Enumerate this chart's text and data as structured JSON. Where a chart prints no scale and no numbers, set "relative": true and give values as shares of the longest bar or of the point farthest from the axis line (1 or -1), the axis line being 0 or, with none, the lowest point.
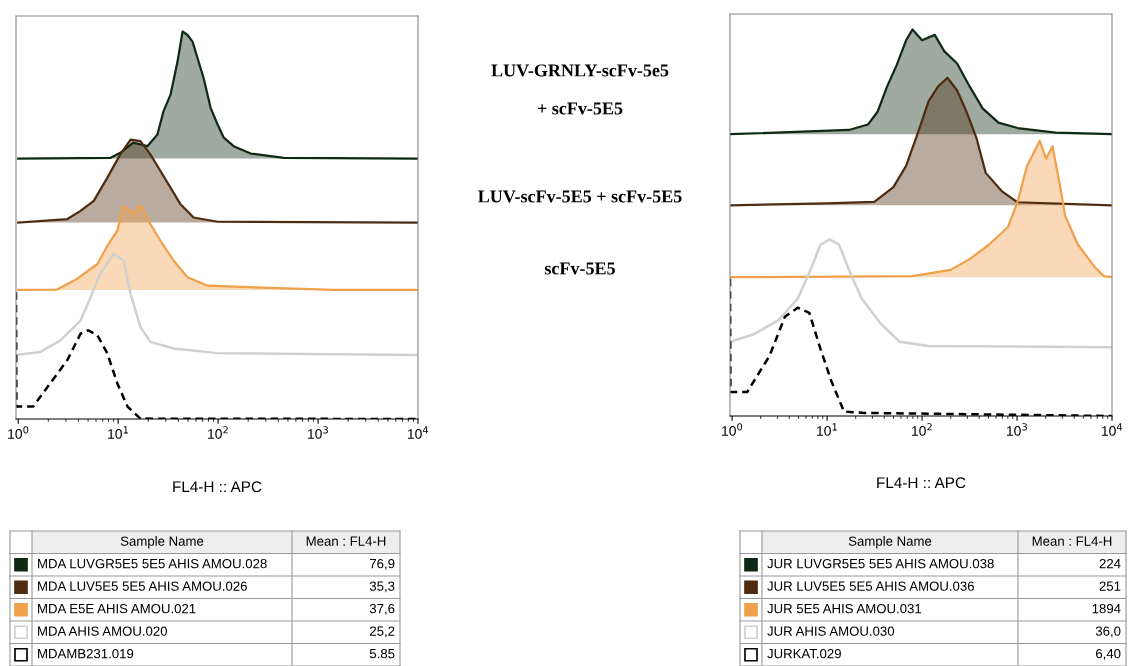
{
  "chart_data": [
    {
      "type": "area",
      "relative": true,
      "xlabel": "FL4-H :: APC",
      "log": "x",
      "xlim": [
        0.95,
        10000
      ],
      "xticks": [
        {
          "value": 1,
          "label": "10$^{0}$"
        },
        {
          "value": 10,
          "label": "10$^{1}$"
        },
        {
          "value": 100,
          "label": "10$^{2}$"
        },
        {
          "value": 1000,
          "label": "10$^{3}$"
        },
        {
          "value": 10000,
          "label": "10$^{4}$"
        }
      ],
      "tick_labels": "x",
      "grid": false,
      "legend": "bottom",
      "annotations": [
        "Sample Name",
        "Mean : FL4-H",
        "76,9",
        "35,3",
        "37,6",
        "25,2",
        "5.85",
        "LUV-GRNLY-scFv-5e5",
        "+ scFv-5E5",
        "LUV-scFv-5E5 + scFv-5E5",
        "scFv-5E5"
      ],
      "series": [
        {
          "name": "MDA LUVGR5E5 5E5 AHIS AMOU.028",
          "color": "#0f2a14",
          "x": [
            1,
            8.4,
            10.5,
            14.2,
            19.6,
            24.7,
            28.4,
            33.4,
            39.3,
            44.1,
            49.4,
            55.5,
            62.3,
            71.6,
            84.1,
            98.9,
            114,
            143,
            212,
            454,
            10000
          ],
          "values": [
            0.672,
            0.674,
            0.687,
            0.713,
            0.704,
            0.734,
            0.794,
            0.837,
            0.923,
            1.0,
            0.991,
            0.974,
            0.931,
            0.88,
            0.803,
            0.76,
            0.726,
            0.704,
            0.685,
            0.674,
            0.672
          ]
        },
        {
          "name": "MDA LUV5E5 5E5 AHIS AMOU.026",
          "color": "#4f2c10",
          "x": [
            1,
            3.1,
            4.2,
            5.7,
            7.8,
            10.5,
            13.3,
            16.7,
            21.0,
            26.5,
            33.4,
            42.1,
            56.8,
            98.9,
            10000
          ],
          "values": [
            0.507,
            0.516,
            0.537,
            0.563,
            0.623,
            0.683,
            0.721,
            0.717,
            0.683,
            0.64,
            0.597,
            0.554,
            0.52,
            0.509,
            0.507
          ]
        },
        {
          "name": "MDA E5E AHIS AMOU.021",
          "color": "#f0a04a",
          "x": [
            1,
            2.46,
            3.9,
            6.2,
            7.8,
            9.8,
            11.3,
            14.2,
            16.7,
            21.0,
            26.5,
            35.8,
            49.4,
            78.5,
            1439,
            10000
          ],
          "values": [
            0.333,
            0.334,
            0.362,
            0.4,
            0.447,
            0.486,
            0.55,
            0.53,
            0.552,
            0.503,
            0.46,
            0.409,
            0.366,
            0.344,
            0.333,
            0.333
          ]
        },
        {
          "name": "MDA AHIS AMOU.020",
          "type": "line",
          "color": "#d0d0d0",
          "x": [
            1,
            1.66,
            2.64,
            4.2,
            5.3,
            6.6,
            9.0,
            11.3,
            13.3,
            16.7,
            21.0,
            35.8,
            98.9,
            10000
          ],
          "values": [
            0.166,
            0.173,
            0.203,
            0.254,
            0.314,
            0.374,
            0.426,
            0.409,
            0.323,
            0.237,
            0.199,
            0.182,
            0.17,
            0.165
          ]
        },
        {
          "name": "MDAMB231.019",
          "type": "line",
          "line_style": "dashed",
          "color": "#000000",
          "x": [
            0.95,
            0.96,
            1.41,
            2.09,
            3.1,
            4.2,
            5.0,
            6.2,
            7.8,
            9.8,
            12.4,
            16.7,
            10000
          ],
          "values": [
            0.327,
            0.032,
            0.032,
            0.092,
            0.152,
            0.22,
            0.229,
            0.216,
            0.169,
            0.092,
            0.032,
            0.001,
            0
          ]
        }
      ]
    },
    {
      "type": "area",
      "relative": true,
      "xlabel": "FL4-H :: APC",
      "log": "x",
      "xlim": [
        0.95,
        10000
      ],
      "xticks": [
        {
          "value": 1,
          "label": "10$^{0}$"
        },
        {
          "value": 10,
          "label": "10$^{1}$"
        },
        {
          "value": 100,
          "label": "10$^{2}$"
        },
        {
          "value": 1000,
          "label": "10$^{3}$"
        },
        {
          "value": 10000,
          "label": "10$^{4}$"
        }
      ],
      "tick_labels": "x",
      "grid": false,
      "legend": "bottom",
      "annotations": [
        "Sample Name",
        "Mean : FL4-H",
        "224",
        "251",
        "1894",
        "36,0",
        "6,40"
      ],
      "series": [
        {
          "name": "JUR LUVGR5E5 5E5 AHIS AMOU.038",
          "color": "#0f2a14",
          "x": [
            0.95,
            17.0,
            26.9,
            34.0,
            42.8,
            53.9,
            67.9,
            79.3,
            100,
            136,
            171,
            234,
            318,
            434,
            637,
            1012,
            2553,
            10000
          ],
          "values": [
            0.729,
            0.74,
            0.754,
            0.787,
            0.852,
            0.907,
            0.972,
            1.0,
            0.972,
            0.986,
            0.944,
            0.912,
            0.852,
            0.796,
            0.759,
            0.745,
            0.733,
            0.729
          ]
        },
        {
          "name": "JUR LUV5E5 5E5 AHIS AMOU.036",
          "color": "#4f2c10",
          "x": [
            0.95,
            9.9,
            31.4,
            49.9,
            67.9,
            92.7,
            117,
            147,
            185,
            234,
            294,
            372,
            468,
            689,
            1012,
            10000
          ],
          "values": [
            0.545,
            0.55,
            0.554,
            0.592,
            0.647,
            0.74,
            0.814,
            0.852,
            0.875,
            0.842,
            0.787,
            0.721,
            0.629,
            0.582,
            0.553,
            0.545
          ]
        },
        {
          "name": "JUR 5E5 AHIS AMOU.031",
          "color": "#f0a04a",
          "x": [
            0.95,
            79,
            200,
            318,
            505,
            803,
            1012,
            1276,
            1734,
            2028,
            2366,
            2761,
            3221,
            4385,
            6501,
            8184,
            10000
          ],
          "values": [
            0.359,
            0.362,
            0.378,
            0.406,
            0.443,
            0.489,
            0.554,
            0.647,
            0.712,
            0.666,
            0.698,
            0.61,
            0.517,
            0.443,
            0.387,
            0.362,
            0.359
          ]
        },
        {
          "name": "JUR AHIS AMOU.030",
          "type": "line",
          "color": "#d0d0d0",
          "x": [
            0.95,
            1.67,
            3.1,
            4.9,
            6.7,
            8.5,
            10.7,
            13.4,
            17.0,
            23.1,
            36.7,
            58.3,
            117,
            10000
          ],
          "values": [
            0.192,
            0.211,
            0.248,
            0.304,
            0.378,
            0.443,
            0.457,
            0.443,
            0.378,
            0.304,
            0.239,
            0.192,
            0.181,
            0.178
          ]
        },
        {
          "name": "JURKAT.029",
          "type": "line",
          "line_style": "dashed",
          "color": "#000000",
          "x": [
            0.95,
            0.96,
            1.44,
            2.47,
            3.6,
            4.9,
            6.5,
            8.5,
            11.1,
            15.1,
            24.9,
            10000
          ],
          "values": [
            0.355,
            0.062,
            0.062,
            0.155,
            0.257,
            0.28,
            0.267,
            0.174,
            0.09,
            0.011,
            0.008,
            0
          ]
        }
      ]
    }
  ]
}
